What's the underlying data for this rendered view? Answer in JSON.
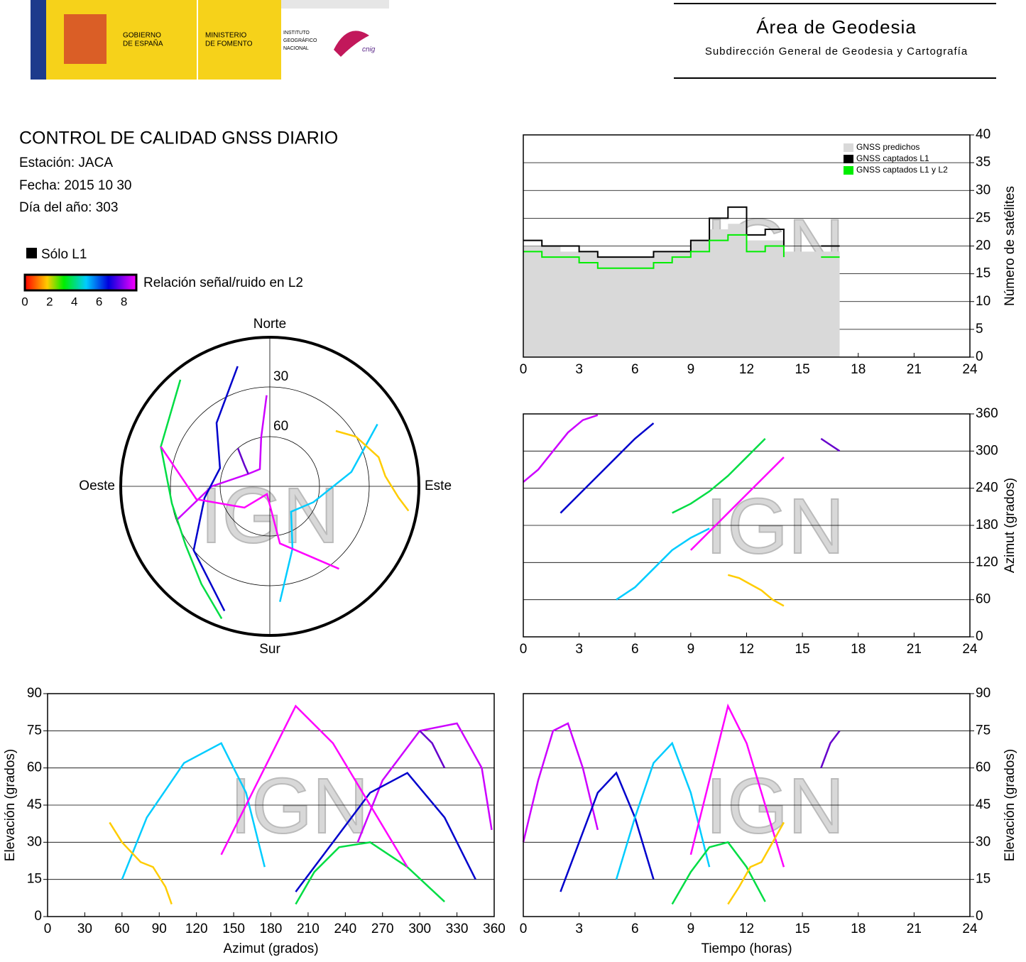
{
  "header": {
    "gov": [
      "GOBIERNO",
      "DE ESPAÑA"
    ],
    "ministry": [
      "MINISTERIO",
      "DE FOMENTO"
    ],
    "institute": [
      "INSTITUTO",
      "GEOGRÁFICO",
      "NACIONAL"
    ],
    "cnig": "cnig",
    "area": "Área de Geodesia",
    "subdirection": "Subdirección General de Geodesia y Cartografía"
  },
  "report": {
    "title": "CONTROL DE CALIDAD GNSS DIARIO",
    "lines": [
      "Estación: JACA",
      "Fecha: 2015 10 30",
      "Día del año: 303"
    ]
  },
  "colorbar": {
    "only_l1": "Sólo L1",
    "label": "Relación señal/ruido en L2",
    "lim": [
      0,
      9
    ],
    "ticks": [
      0,
      2,
      4,
      6,
      8
    ]
  },
  "watermark": "IGN",
  "chart_data": [
    {
      "type": "step",
      "ylabel": "Número de satélites",
      "yaxis_side": "right",
      "grid": true,
      "legend": "upper right",
      "xlim": [
        0,
        24
      ],
      "xticks": [
        0,
        3,
        6,
        9,
        12,
        15,
        18,
        21,
        24
      ],
      "ylim": [
        0,
        40
      ],
      "yticks": [
        0,
        5,
        10,
        15,
        20,
        25,
        30,
        35,
        40
      ],
      "x": [
        0,
        1,
        2,
        3,
        4,
        5,
        6,
        7,
        8,
        9,
        10,
        11,
        12,
        13,
        14,
        15,
        16,
        17
      ],
      "series": [
        {
          "name": "GNSS predichos",
          "color": "#d9d9d9",
          "fill": true,
          "values": [
            20,
            20,
            19,
            19,
            18,
            18,
            18,
            19,
            19,
            21,
            23,
            24,
            21,
            21,
            19,
            19,
            19,
            19
          ]
        },
        {
          "name": "GNSS captados L1",
          "color": "#000000",
          "values": [
            21,
            20,
            20,
            19,
            18,
            18,
            18,
            19,
            19,
            21,
            25,
            27,
            22,
            23,
            20,
            null,
            20,
            20
          ]
        },
        {
          "name": "GNSS captados L1 y L2",
          "color": "#00ee00",
          "values": [
            19,
            18,
            18,
            17,
            16,
            16,
            16,
            17,
            18,
            19,
            21,
            22,
            19,
            20,
            18,
            null,
            18,
            18
          ]
        }
      ]
    },
    {
      "type": "line",
      "ylabel": "Azimut (grados)",
      "yaxis_side": "right",
      "grid": true,
      "xlim": [
        0,
        24
      ],
      "xticks": [
        0,
        3,
        6,
        9,
        12,
        15,
        18,
        21,
        24
      ],
      "ylim": [
        0,
        360
      ],
      "yticks": [
        0,
        60,
        120,
        180,
        240,
        300,
        360
      ],
      "series": [
        {
          "color": "#cc00ff",
          "x": [
            0,
            0.8,
            1.6,
            2.4,
            3.2,
            4.0
          ],
          "values": [
            250,
            270,
            300,
            330,
            350,
            358
          ]
        },
        {
          "color": "#0000cc",
          "x": [
            2,
            3,
            4,
            5,
            6,
            7
          ],
          "values": [
            200,
            230,
            260,
            290,
            320,
            345
          ]
        },
        {
          "color": "#00ccff",
          "x": [
            5,
            6,
            7,
            8,
            9,
            10
          ],
          "values": [
            60,
            80,
            110,
            140,
            160,
            175
          ]
        },
        {
          "color": "#00dd44",
          "x": [
            8,
            9,
            10,
            11,
            12,
            13
          ],
          "values": [
            200,
            215,
            235,
            260,
            290,
            320
          ]
        },
        {
          "color": "#ff00ff",
          "x": [
            9,
            10,
            11,
            12,
            13,
            14
          ],
          "values": [
            140,
            170,
            200,
            230,
            260,
            290
          ]
        },
        {
          "color": "#ffcc00",
          "x": [
            11,
            11.6,
            12.2,
            12.8,
            13.4,
            14
          ],
          "values": [
            100,
            95,
            85,
            75,
            60,
            50
          ]
        },
        {
          "color": "#6600cc",
          "x": [
            16,
            16.5,
            17
          ],
          "values": [
            320,
            310,
            300
          ]
        }
      ]
    },
    {
      "type": "line",
      "xlabel": "Azimut (grados)",
      "ylabel": "Elevación (grados)",
      "yaxis_side": "left",
      "grid": true,
      "xlim": [
        0,
        360
      ],
      "xticks": [
        0,
        30,
        60,
        90,
        120,
        150,
        180,
        210,
        240,
        270,
        300,
        330,
        360
      ],
      "ylim": [
        0,
        90
      ],
      "yticks": [
        0,
        15,
        30,
        45,
        60,
        75,
        90
      ],
      "series": [
        {
          "color": "#cc00ff",
          "x": [
            250,
            270,
            300,
            330,
            350,
            358
          ],
          "values": [
            30,
            55,
            75,
            78,
            60,
            35
          ]
        },
        {
          "color": "#0000cc",
          "x": [
            200,
            230,
            260,
            290,
            320,
            345
          ],
          "values": [
            10,
            30,
            50,
            58,
            40,
            15
          ]
        },
        {
          "color": "#00ccff",
          "x": [
            60,
            80,
            110,
            140,
            160,
            175
          ],
          "values": [
            15,
            40,
            62,
            70,
            50,
            20
          ]
        },
        {
          "color": "#00dd44",
          "x": [
            200,
            215,
            235,
            260,
            290,
            320
          ],
          "values": [
            5,
            18,
            28,
            30,
            20,
            6
          ]
        },
        {
          "color": "#ff00ff",
          "x": [
            140,
            170,
            200,
            230,
            260,
            290
          ],
          "values": [
            25,
            55,
            85,
            70,
            45,
            20
          ]
        },
        {
          "color": "#ffcc00",
          "x": [
            100,
            95,
            85,
            75,
            60,
            50
          ],
          "values": [
            5,
            12,
            20,
            22,
            30,
            38
          ]
        },
        {
          "color": "#6600cc",
          "x": [
            320,
            310,
            300
          ],
          "values": [
            60,
            70,
            75
          ]
        }
      ]
    },
    {
      "type": "line",
      "xlabel": "Tiempo (horas)",
      "ylabel": "Elevación (grados)",
      "yaxis_side": "right",
      "grid": true,
      "xlim": [
        0,
        24
      ],
      "xticks": [
        0,
        3,
        6,
        9,
        12,
        15,
        18,
        21,
        24
      ],
      "ylim": [
        0,
        90
      ],
      "yticks": [
        0,
        15,
        30,
        45,
        60,
        75,
        90
      ],
      "series": [
        {
          "color": "#cc00ff",
          "x": [
            0,
            0.8,
            1.6,
            2.4,
            3.2,
            4.0
          ],
          "values": [
            30,
            55,
            75,
            78,
            60,
            35
          ]
        },
        {
          "color": "#0000cc",
          "x": [
            2,
            3,
            4,
            5,
            6,
            7
          ],
          "values": [
            10,
            30,
            50,
            58,
            40,
            15
          ]
        },
        {
          "color": "#00ccff",
          "x": [
            5,
            6,
            7,
            8,
            9,
            10
          ],
          "values": [
            15,
            40,
            62,
            70,
            50,
            20
          ]
        },
        {
          "color": "#00dd44",
          "x": [
            8,
            9,
            10,
            11,
            12,
            13
          ],
          "values": [
            5,
            18,
            28,
            30,
            20,
            6
          ]
        },
        {
          "color": "#ff00ff",
          "x": [
            9,
            10,
            11,
            12,
            13,
            14
          ],
          "values": [
            25,
            55,
            85,
            70,
            45,
            20
          ]
        },
        {
          "color": "#ffcc00",
          "x": [
            11,
            11.6,
            12.2,
            12.8,
            13.4,
            14
          ],
          "values": [
            5,
            12,
            20,
            22,
            30,
            38
          ]
        },
        {
          "color": "#6600cc",
          "x": [
            16,
            16.5,
            17
          ],
          "values": [
            60,
            70,
            75
          ]
        }
      ]
    },
    {
      "type": "polar",
      "directions": [
        "Norte",
        "Este",
        "Sur",
        "Oeste"
      ],
      "rticks": [
        30,
        60
      ],
      "rlim": [
        90,
        0
      ],
      "series": [
        {
          "color": "#cc00ff",
          "theta": [
            250,
            270,
            300,
            330,
            350,
            358
          ],
          "values": [
            30,
            55,
            75,
            78,
            60,
            35
          ]
        },
        {
          "color": "#0000cc",
          "theta": [
            200,
            230,
            260,
            290,
            320,
            345
          ],
          "values": [
            10,
            30,
            50,
            58,
            40,
            15
          ]
        },
        {
          "color": "#00ccff",
          "theta": [
            60,
            80,
            110,
            140,
            160,
            175
          ],
          "values": [
            15,
            40,
            62,
            70,
            50,
            20
          ]
        },
        {
          "color": "#00dd44",
          "theta": [
            200,
            215,
            235,
            260,
            290,
            320
          ],
          "values": [
            5,
            18,
            28,
            30,
            20,
            6
          ]
        },
        {
          "color": "#ff00ff",
          "theta": [
            140,
            170,
            200,
            230,
            260,
            290
          ],
          "values": [
            25,
            55,
            85,
            70,
            45,
            20
          ]
        },
        {
          "color": "#ffcc00",
          "theta": [
            100,
            95,
            85,
            75,
            60,
            50
          ],
          "values": [
            5,
            12,
            20,
            22,
            30,
            38
          ]
        },
        {
          "color": "#6600cc",
          "theta": [
            320,
            310,
            300
          ],
          "values": [
            60,
            70,
            75
          ]
        }
      ]
    }
  ]
}
